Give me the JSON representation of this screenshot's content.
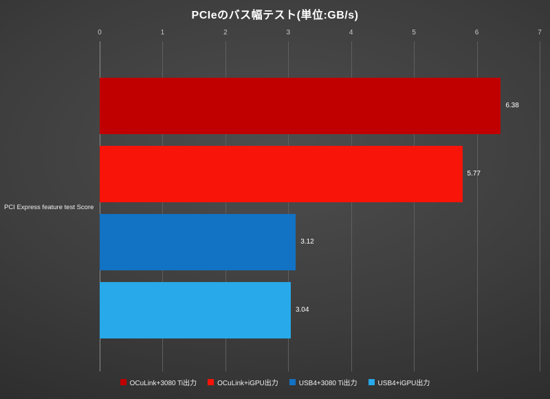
{
  "chart_data": {
    "type": "bar",
    "orientation": "horizontal",
    "title": "PCIeのバス幅テスト(単位:GB/s)",
    "category_axis_label": "PCI Express feature test Score",
    "x_ticks": [
      0,
      1,
      2,
      3,
      4,
      5,
      6,
      7
    ],
    "xlim": [
      0,
      7
    ],
    "grid": true,
    "legend_position": "bottom",
    "series": [
      {
        "name": "OCuLink+3080 Ti出力",
        "value": 6.38,
        "label": "6.38",
        "color": "#c00000"
      },
      {
        "name": "OCuLink+iGPU出力",
        "value": 5.77,
        "label": "5.77",
        "color": "#f81408"
      },
      {
        "name": "USB4+3080 Ti出力",
        "value": 3.12,
        "label": "3.12",
        "color": "#1272c4"
      },
      {
        "name": "USB4+iGPU出力",
        "value": 3.04,
        "label": "3.04",
        "color": "#27a9ea"
      }
    ],
    "colors": {
      "background_center": "#4e4e4e",
      "background_edge": "#232323",
      "gridline": "#606060",
      "text": "#ffffff"
    }
  }
}
